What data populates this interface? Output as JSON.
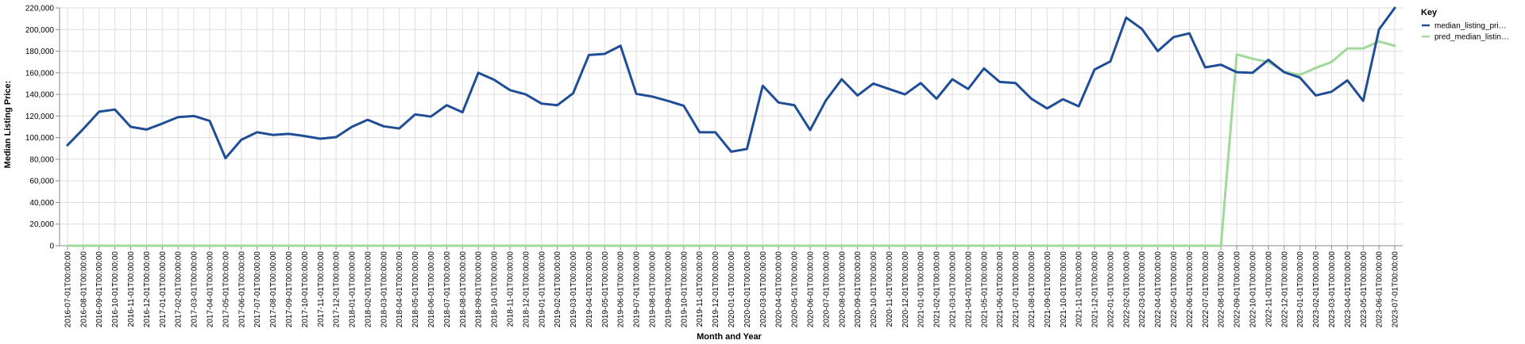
{
  "chart_data": {
    "type": "line",
    "xlabel": "Month and Year",
    "ylabel": "Median Listing Price:",
    "ylim": [
      0,
      220000
    ],
    "yticks": [
      "0",
      "20,000",
      "40,000",
      "60,000",
      "80,000",
      "100,000",
      "120,000",
      "140,000",
      "160,000",
      "180,000",
      "200,000",
      "220,000"
    ],
    "grid": true,
    "legend": {
      "title": "Key",
      "placement": "top-right"
    },
    "x": [
      "2016-07-01T00:00:00",
      "2016-08-01T00:00:00",
      "2016-09-01T00:00:00",
      "2016-10-01T00:00:00",
      "2016-11-01T00:00:00",
      "2016-12-01T00:00:00",
      "2017-01-01T00:00:00",
      "2017-02-01T00:00:00",
      "2017-03-01T00:00:00",
      "2017-04-01T00:00:00",
      "2017-05-01T00:00:00",
      "2017-06-01T00:00:00",
      "2017-07-01T00:00:00",
      "2017-08-01T00:00:00",
      "2017-09-01T00:00:00",
      "2017-10-01T00:00:00",
      "2017-11-01T00:00:00",
      "2017-12-01T00:00:00",
      "2018-01-01T00:00:00",
      "2018-02-01T00:00:00",
      "2018-03-01T00:00:00",
      "2018-04-01T00:00:00",
      "2018-05-01T00:00:00",
      "2018-06-01T00:00:00",
      "2018-07-01T00:00:00",
      "2018-08-01T00:00:00",
      "2018-09-01T00:00:00",
      "2018-10-01T00:00:00",
      "2018-11-01T00:00:00",
      "2018-12-01T00:00:00",
      "2019-01-01T00:00:00",
      "2019-02-01T00:00:00",
      "2019-03-01T00:00:00",
      "2019-04-01T00:00:00",
      "2019-05-01T00:00:00",
      "2019-06-01T00:00:00",
      "2019-07-01T00:00:00",
      "2019-08-01T00:00:00",
      "2019-09-01T00:00:00",
      "2019-10-01T00:00:00",
      "2019-11-01T00:00:00",
      "2019-12-01T00:00:00",
      "2020-01-01T00:00:00",
      "2020-02-01T00:00:00",
      "2020-03-01T00:00:00",
      "2020-04-01T00:00:00",
      "2020-05-01T00:00:00",
      "2020-06-01T00:00:00",
      "2020-07-01T00:00:00",
      "2020-08-01T00:00:00",
      "2020-09-01T00:00:00",
      "2020-10-01T00:00:00",
      "2020-11-01T00:00:00",
      "2020-12-01T00:00:00",
      "2021-01-01T00:00:00",
      "2021-02-01T00:00:00",
      "2021-03-01T00:00:00",
      "2021-04-01T00:00:00",
      "2021-05-01T00:00:00",
      "2021-06-01T00:00:00",
      "2021-07-01T00:00:00",
      "2021-08-01T00:00:00",
      "2021-09-01T00:00:00",
      "2021-10-01T00:00:00",
      "2021-11-01T00:00:00",
      "2021-12-01T00:00:00",
      "2022-01-01T00:00:00",
      "2022-02-01T00:00:00",
      "2022-03-01T00:00:00",
      "2022-04-01T00:00:00",
      "2022-05-01T00:00:00",
      "2022-06-01T00:00:00",
      "2022-07-01T00:00:00",
      "2022-08-01T00:00:00",
      "2022-09-01T00:00:00",
      "2022-10-01T00:00:00",
      "2022-11-01T00:00:00",
      "2022-12-01T00:00:00",
      "2023-01-01T00:00:00",
      "2023-02-01T00:00:00",
      "2023-03-01T00:00:00",
      "2023-04-01T00:00:00",
      "2023-05-01T00:00:00",
      "2023-06-01T00:00:00",
      "2023-07-01T00:00:00"
    ],
    "series": [
      {
        "name": "median_listing_pri…",
        "color": "#1f4e96",
        "values": [
          93000,
          108000,
          124000,
          126000,
          110000,
          107500,
          113000,
          119000,
          120000,
          115500,
          81000,
          98000,
          105000,
          102500,
          103500,
          101500,
          99000,
          100500,
          110000,
          116500,
          110500,
          108500,
          121500,
          119500,
          130000,
          123500,
          160000,
          153500,
          144000,
          140000,
          131500,
          130000,
          141000,
          176500,
          177500,
          185000,
          140500,
          138000,
          134000,
          129500,
          105000,
          105000,
          87000,
          89500,
          148000,
          132500,
          130000,
          107000,
          134500,
          154000,
          139000,
          150000,
          145000,
          140000,
          150500,
          136000,
          154000,
          145000,
          164000,
          151500,
          150500,
          136000,
          127000,
          135500,
          129000,
          163000,
          170500,
          211000,
          200500,
          180000,
          193000,
          196500,
          165000,
          167500,
          160500,
          160000,
          172000,
          160500,
          155500,
          139000,
          142500,
          153000,
          134000,
          200000,
          220000
        ]
      },
      {
        "name": "pred_median_listin…",
        "color": "#a1d99b",
        "values": [
          0,
          0,
          0,
          0,
          0,
          0,
          0,
          0,
          0,
          0,
          0,
          0,
          0,
          0,
          0,
          0,
          0,
          0,
          0,
          0,
          0,
          0,
          0,
          0,
          0,
          0,
          0,
          0,
          0,
          0,
          0,
          0,
          0,
          0,
          0,
          0,
          0,
          0,
          0,
          0,
          0,
          0,
          0,
          0,
          0,
          0,
          0,
          0,
          0,
          0,
          0,
          0,
          0,
          0,
          0,
          0,
          0,
          0,
          0,
          0,
          0,
          0,
          0,
          0,
          0,
          0,
          0,
          0,
          0,
          0,
          0,
          0,
          0,
          0,
          177000,
          173000,
          170000,
          161000,
          158000,
          164500,
          170000,
          182500,
          182500,
          189000,
          185000
        ]
      }
    ]
  }
}
